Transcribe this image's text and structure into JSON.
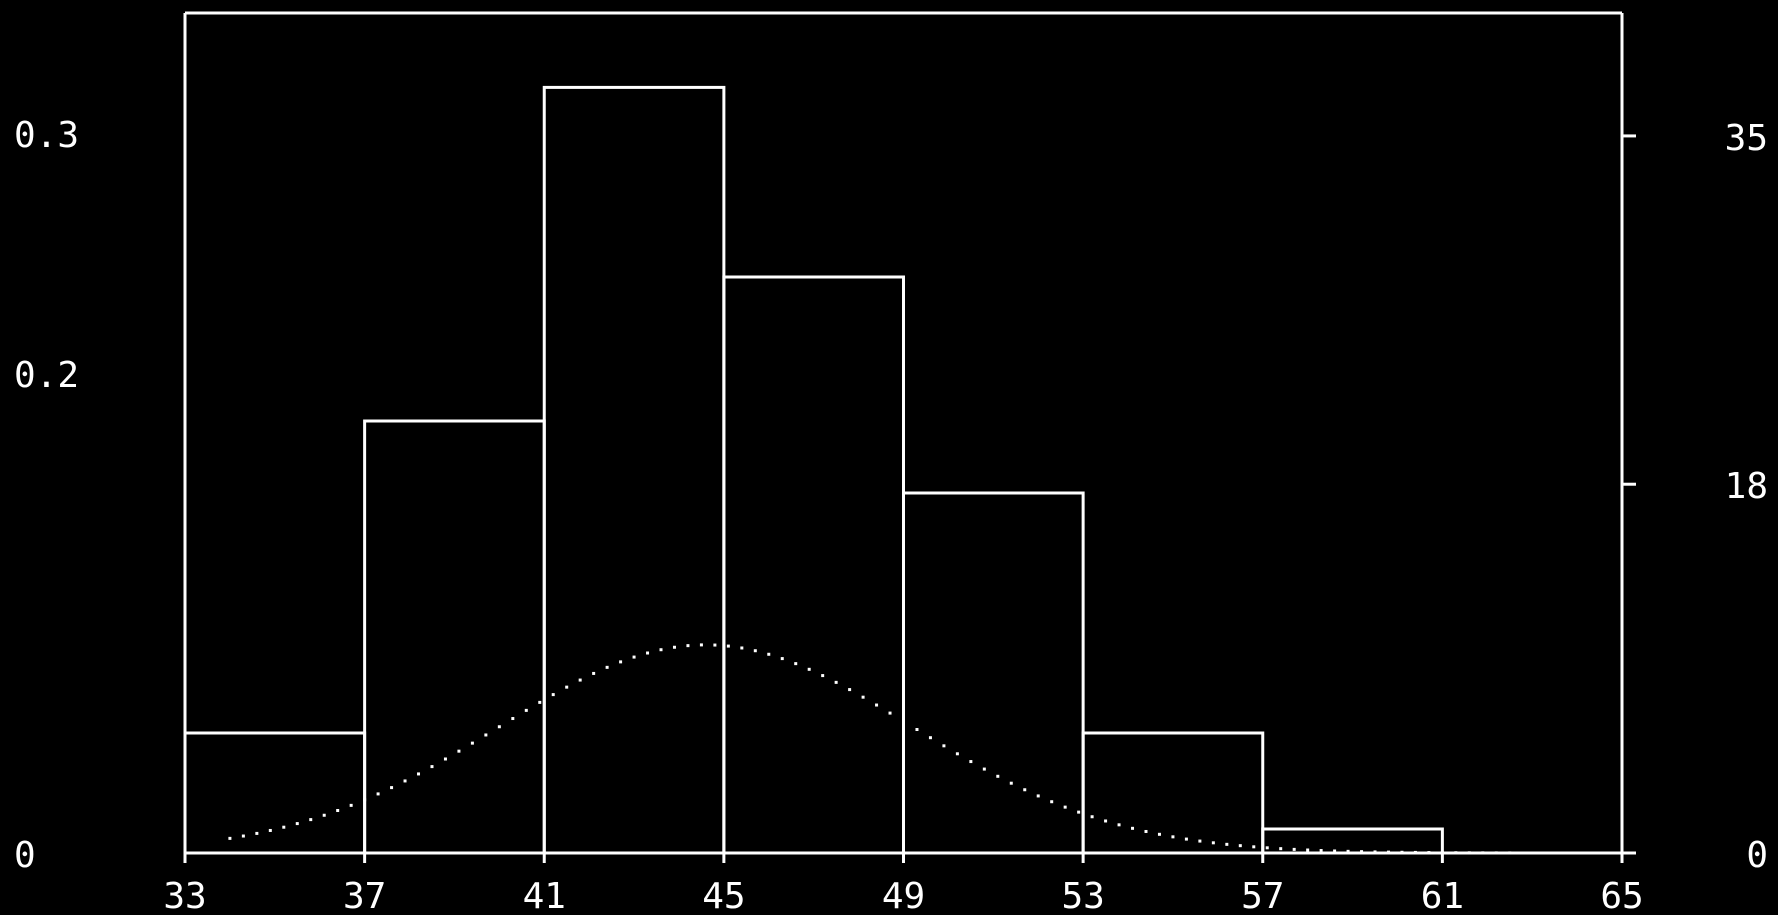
{
  "chart_data": {
    "type": "bar",
    "subtype": "histogram",
    "bins": [
      {
        "from": 33,
        "to": 37,
        "density": 0.05
      },
      {
        "from": 37,
        "to": 41,
        "density": 0.18
      },
      {
        "from": 41,
        "to": 45,
        "density": 0.319
      },
      {
        "from": 45,
        "to": 49,
        "density": 0.24
      },
      {
        "from": 49,
        "to": 53,
        "density": 0.15
      },
      {
        "from": 53,
        "to": 57,
        "density": 0.05
      },
      {
        "from": 57,
        "to": 61,
        "density": 0.01
      },
      {
        "from": 61,
        "to": 65,
        "density": 0
      }
    ],
    "density_curve": {
      "type": "normal",
      "mean": 44.6,
      "sd": 4.6,
      "x_range": [
        34,
        62.5
      ],
      "style": "dotted"
    },
    "xlim": [
      33,
      65
    ],
    "x_ticks": [
      "33",
      "37",
      "41",
      "45",
      "49",
      "53",
      "57",
      "61",
      "65"
    ],
    "ylim_left": [
      0,
      0.35
    ],
    "y_ticks_left": [
      "0",
      "0.2",
      "0.3"
    ],
    "ylim_right": [
      0,
      41
    ],
    "y_ticks_right": [
      "0",
      "18",
      "35"
    ],
    "title": "",
    "xlabel": "",
    "ylabel": "",
    "grid": false,
    "legend": "none",
    "colors": {
      "background": "#000000",
      "foreground": "#ffffff"
    }
  }
}
